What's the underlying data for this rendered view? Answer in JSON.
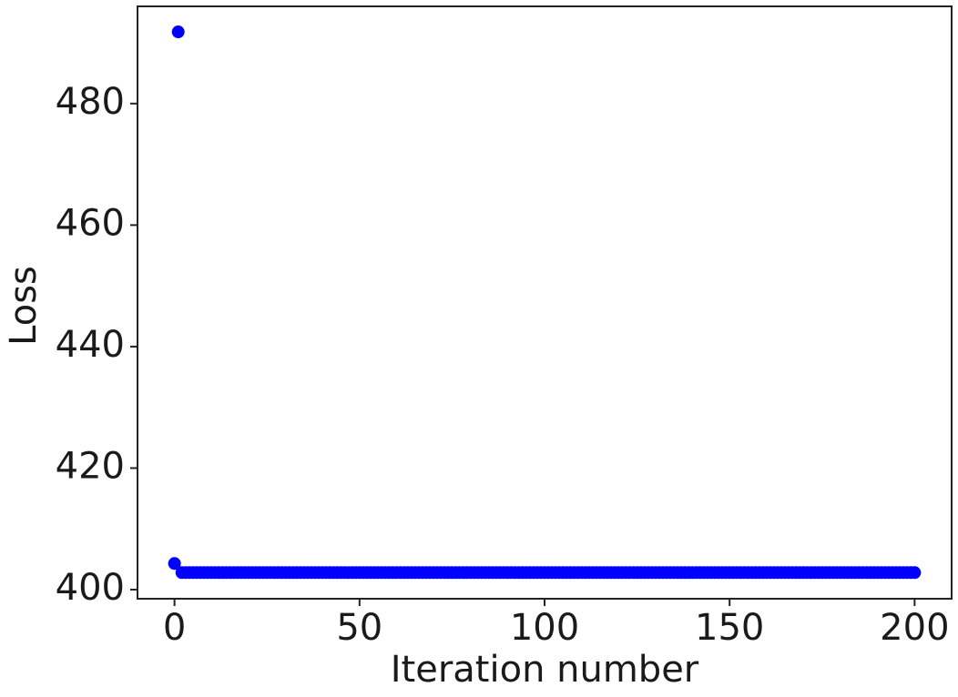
{
  "chart_data": {
    "type": "scatter",
    "xlabel": "Iteration number",
    "ylabel": "Loss",
    "color": "#0000ff",
    "xlim": [
      -10,
      210
    ],
    "xticks": [
      0,
      50,
      100,
      150,
      200
    ],
    "ylim": [
      398.5,
      496
    ],
    "yticks": [
      400,
      420,
      440,
      460,
      480
    ],
    "x": [
      0,
      1,
      2,
      3,
      4,
      5,
      6,
      7,
      8,
      9,
      10,
      11,
      12,
      13,
      14,
      15,
      16,
      17,
      18,
      19,
      20,
      21,
      22,
      23,
      24,
      25,
      26,
      27,
      28,
      29,
      30,
      31,
      32,
      33,
      34,
      35,
      36,
      37,
      38,
      39,
      40,
      41,
      42,
      43,
      44,
      45,
      46,
      47,
      48,
      49,
      50,
      51,
      52,
      53,
      54,
      55,
      56,
      57,
      58,
      59,
      60,
      61,
      62,
      63,
      64,
      65,
      66,
      67,
      68,
      69,
      70,
      71,
      72,
      73,
      74,
      75,
      76,
      77,
      78,
      79,
      80,
      81,
      82,
      83,
      84,
      85,
      86,
      87,
      88,
      89,
      90,
      91,
      92,
      93,
      94,
      95,
      96,
      97,
      98,
      99,
      100,
      101,
      102,
      103,
      104,
      105,
      106,
      107,
      108,
      109,
      110,
      111,
      112,
      113,
      114,
      115,
      116,
      117,
      118,
      119,
      120,
      121,
      122,
      123,
      124,
      125,
      126,
      127,
      128,
      129,
      130,
      131,
      132,
      133,
      134,
      135,
      136,
      137,
      138,
      139,
      140,
      141,
      142,
      143,
      144,
      145,
      146,
      147,
      148,
      149,
      150,
      151,
      152,
      153,
      154,
      155,
      156,
      157,
      158,
      159,
      160,
      161,
      162,
      163,
      164,
      165,
      166,
      167,
      168,
      169,
      170,
      171,
      172,
      173,
      174,
      175,
      176,
      177,
      178,
      179,
      180,
      181,
      182,
      183,
      184,
      185,
      186,
      187,
      188,
      189,
      190,
      191,
      192,
      193,
      194,
      195,
      196,
      197,
      198,
      199,
      200
    ],
    "values": [
      404.3,
      491.8,
      402.8,
      402.8,
      402.8,
      402.8,
      402.8,
      402.8,
      402.8,
      402.8,
      402.8,
      402.8,
      402.8,
      402.8,
      402.8,
      402.8,
      402.8,
      402.8,
      402.8,
      402.8,
      402.8,
      402.8,
      402.8,
      402.8,
      402.8,
      402.8,
      402.8,
      402.8,
      402.8,
      402.8,
      402.8,
      402.8,
      402.8,
      402.8,
      402.8,
      402.8,
      402.8,
      402.8,
      402.8,
      402.8,
      402.8,
      402.8,
      402.8,
      402.8,
      402.8,
      402.8,
      402.8,
      402.8,
      402.8,
      402.8,
      402.8,
      402.8,
      402.8,
      402.8,
      402.8,
      402.8,
      402.8,
      402.8,
      402.8,
      402.8,
      402.8,
      402.8,
      402.8,
      402.8,
      402.8,
      402.8,
      402.8,
      402.8,
      402.8,
      402.8,
      402.8,
      402.8,
      402.8,
      402.8,
      402.8,
      402.8,
      402.8,
      402.8,
      402.8,
      402.8,
      402.8,
      402.8,
      402.8,
      402.8,
      402.8,
      402.8,
      402.8,
      402.8,
      402.8,
      402.8,
      402.8,
      402.8,
      402.8,
      402.8,
      402.8,
      402.8,
      402.8,
      402.8,
      402.8,
      402.8,
      402.8,
      402.8,
      402.8,
      402.8,
      402.8,
      402.8,
      402.8,
      402.8,
      402.8,
      402.8,
      402.8,
      402.8,
      402.8,
      402.8,
      402.8,
      402.8,
      402.8,
      402.8,
      402.8,
      402.8,
      402.8,
      402.8,
      402.8,
      402.8,
      402.8,
      402.8,
      402.8,
      402.8,
      402.8,
      402.8,
      402.8,
      402.8,
      402.8,
      402.8,
      402.8,
      402.8,
      402.8,
      402.8,
      402.8,
      402.8,
      402.8,
      402.8,
      402.8,
      402.8,
      402.8,
      402.8,
      402.8,
      402.8,
      402.8,
      402.8,
      402.8,
      402.8,
      402.8,
      402.8,
      402.8,
      402.8,
      402.8,
      402.8,
      402.8,
      402.8,
      402.8,
      402.8,
      402.8,
      402.8,
      402.8,
      402.8,
      402.8,
      402.8,
      402.8,
      402.8,
      402.8,
      402.8,
      402.8,
      402.8,
      402.8,
      402.8,
      402.8,
      402.8,
      402.8,
      402.8,
      402.8,
      402.8,
      402.8,
      402.8,
      402.8,
      402.8,
      402.8,
      402.8,
      402.8,
      402.8,
      402.8,
      402.8,
      402.8,
      402.8,
      402.8,
      402.8,
      402.8,
      402.8,
      402.8,
      402.8,
      402.8
    ]
  }
}
